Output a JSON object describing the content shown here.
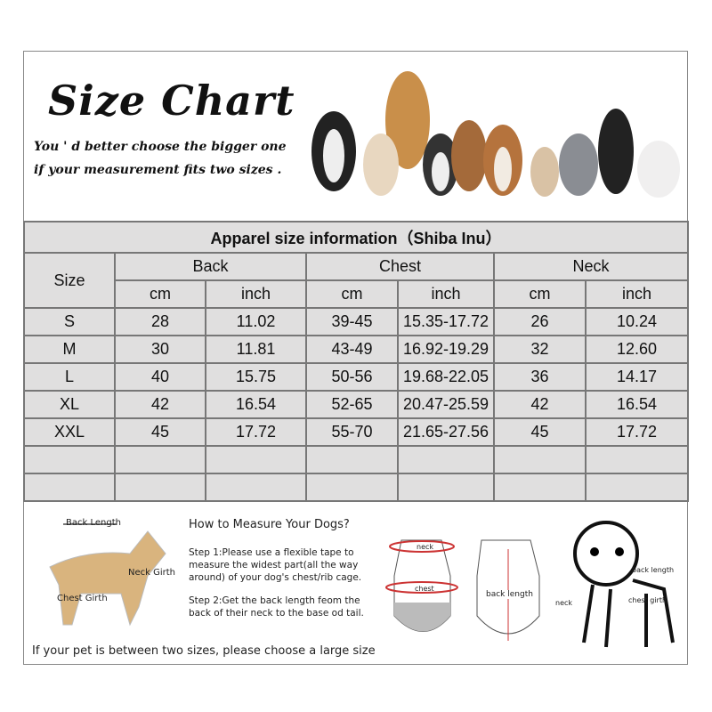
{
  "header": {
    "title": "Size Chart",
    "subtitle_line1": "You ' d better choose the bigger one",
    "subtitle_line2": "if your measurement fits two sizes ."
  },
  "table": {
    "title": "Apparel  size  information（Shiba Inu）",
    "size_label": "Size",
    "groups": [
      "Back",
      "Chest",
      "Neck"
    ],
    "units": [
      "cm",
      "inch",
      "cm",
      "inch",
      "cm",
      "inch"
    ],
    "rows": [
      [
        "S",
        "28",
        "11.02",
        "39-45",
        "15.35-17.72",
        "26",
        "10.24"
      ],
      [
        "M",
        "30",
        "11.81",
        "43-49",
        "16.92-19.29",
        "32",
        "12.60"
      ],
      [
        "L",
        "40",
        "15.75",
        "50-56",
        "19.68-22.05",
        "36",
        "14.17"
      ],
      [
        "XL",
        "42",
        "16.54",
        "52-65",
        "20.47-25.59",
        "42",
        "16.54"
      ],
      [
        "XXL",
        "45",
        "17.72",
        "55-70",
        "21.65-27.56",
        "45",
        "17.72"
      ]
    ]
  },
  "measure": {
    "back_length": "Back Length",
    "neck_girth": "Neck Girth",
    "chest_girth": "Chest Girth",
    "heading": "How to Measure Your Dogs?",
    "step1": "Step 1:Please use a flexible tape to measure the widest part(all the way around) of your dog's chest/rib cage.",
    "step2": "Step 2:Get the back length feom the back of their neck to the base od tail.",
    "note": "If your pet is between two sizes, please choose a large size",
    "vest_neck": "neck",
    "vest_chest": "chest",
    "vest_back": "back length",
    "puppy_back": "back length",
    "puppy_neck": "neck",
    "puppy_chest": "chest girth"
  }
}
